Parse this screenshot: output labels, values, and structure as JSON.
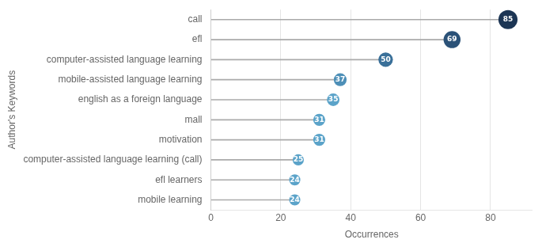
{
  "chart_data": {
    "type": "lollipop",
    "orientation": "horizontal",
    "xlabel": "Occurrences",
    "ylabel": "Author's Keywords",
    "categories": [
      "mobile learning",
      "efl learners",
      "computer-assisted language learning (call)",
      "motivation",
      "mall",
      "english as a foreign language",
      "mobile-assisted language learning",
      "computer-assisted language learning",
      "efl",
      "call"
    ],
    "values": [
      24,
      24,
      25,
      31,
      31,
      35,
      37,
      50,
      69,
      85
    ],
    "color": "#aaaaaa",
    "colors": [
      "#5ba3c9",
      "#5ba3c9",
      "#5ba3c9",
      "#5ba3c9",
      "#5ba3c9",
      "#5ba3c9",
      "#4d8fb7",
      "#3a7099",
      "#2b5278",
      "#1c3554"
    ],
    "xlim": [
      0,
      92
    ],
    "xticks": [
      0,
      20,
      40,
      60,
      80
    ],
    "grid": "x",
    "data_labels": true
  }
}
